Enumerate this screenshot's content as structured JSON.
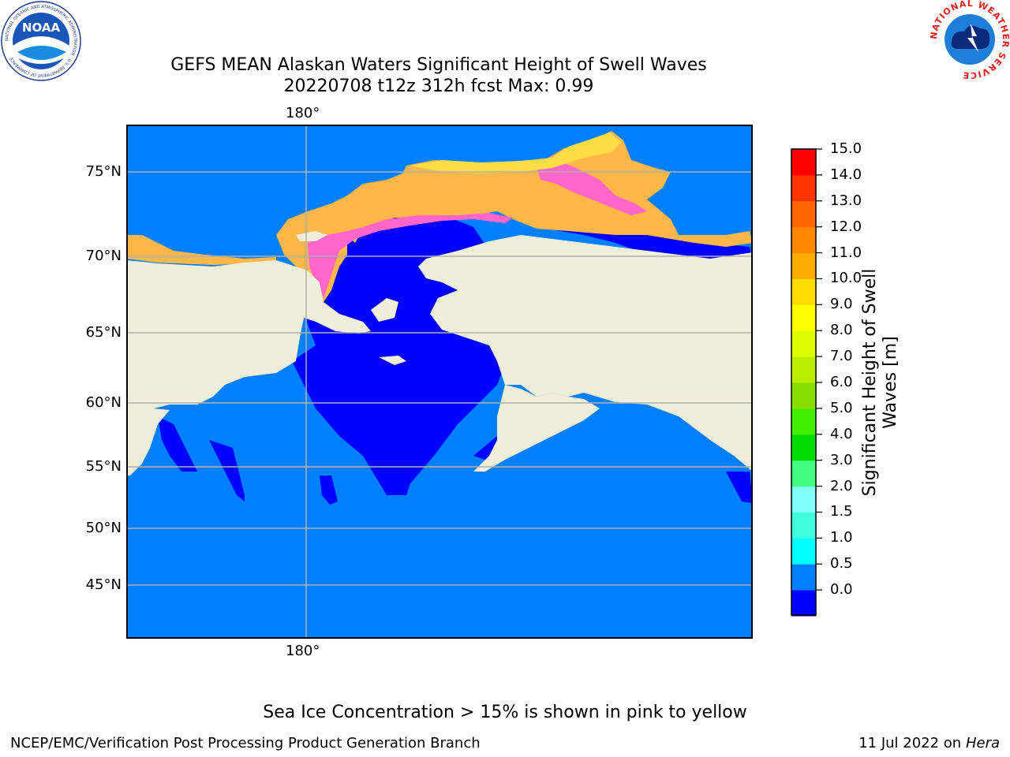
{
  "header": {
    "title_line1": "GEFS MEAN Alaskan Waters Significant Height of Swell Waves",
    "title_line2": "20220708 t12z 312h fcst   Max: 0.99"
  },
  "logos": {
    "left": {
      "name": "NOAA",
      "ring_text": "NATIONAL OCEANIC AND ATMOSPHERIC ADMINISTRATION · U.S. DEPARTMENT OF COMMERCE",
      "center_text": "NOAA"
    },
    "right": {
      "name": "National Weather Service",
      "ring_text": "NATIONAL WEATHER SERVICE"
    }
  },
  "map": {
    "lon_label_top": "180°",
    "lon_label_bottom": "180°",
    "lat_labels": [
      "75°N",
      "70°N",
      "65°N",
      "60°N",
      "55°N",
      "50°N",
      "45°N"
    ],
    "colors": {
      "ocean": "#0080ff",
      "low_swell": "#0000ff",
      "land": "#efeedc",
      "grid": "#b0b0b0",
      "ice_pink": "#ff66cc",
      "ice_orange": "#ffb74a",
      "ice_yellow": "#ffdd44"
    }
  },
  "colorbar": {
    "title_line1": "Significant Height of Swell",
    "title_line2": "Waves [m]",
    "ticks": [
      "15.0",
      "14.0",
      "13.0",
      "12.0",
      "11.0",
      "10.0",
      "9.0",
      "8.0",
      "7.0",
      "6.0",
      "5.0",
      "4.0",
      "3.0",
      "2.0",
      "1.5",
      "1.0",
      "0.5",
      "0.0"
    ],
    "colors_bottom_to_top": [
      "#0000ff",
      "#0080ff",
      "#00ffff",
      "#40ffdd",
      "#80ffff",
      "#40ff80",
      "#00dd00",
      "#44ee00",
      "#88dd00",
      "#bbee00",
      "#ddff00",
      "#ffff00",
      "#ffdd00",
      "#ffaa00",
      "#ff8800",
      "#ff6600",
      "#ff3300",
      "#ff0000"
    ]
  },
  "note": "Sea Ice Concentration > 15% is shown in pink to yellow",
  "footer": {
    "left": "NCEP/EMC/Verification Post Processing Product Generation Branch",
    "right_prefix": "11 Jul 2022 on ",
    "right_host": "Hera"
  }
}
